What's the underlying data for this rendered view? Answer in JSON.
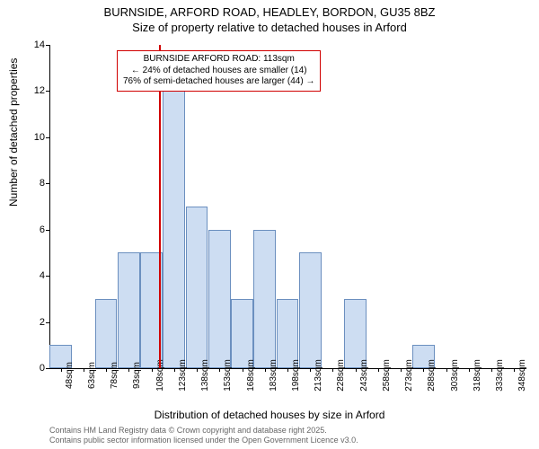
{
  "title": {
    "line1": "BURNSIDE, ARFORD ROAD, HEADLEY, BORDON, GU35 8BZ",
    "line2": "Size of property relative to detached houses in Arford"
  },
  "chart": {
    "type": "histogram",
    "ylabel": "Number of detached properties",
    "xlabel": "Distribution of detached houses by size in Arford",
    "ylim": [
      0,
      14
    ],
    "ytick_step": 2,
    "background_color": "#ffffff",
    "bar_fill": "#cdddf2",
    "bar_border": "#6b8fbf",
    "vline_color": "#d00000",
    "vline_value": 113,
    "annotation": {
      "line1": "BURNSIDE ARFORD ROAD: 113sqm",
      "line2": "← 24% of detached houses are smaller (14)",
      "line3": "76% of semi-detached houses are larger (44) →",
      "border_color": "#d00000"
    },
    "xticks": [
      "48sqm",
      "63sqm",
      "78sqm",
      "93sqm",
      "108sqm",
      "123sqm",
      "138sqm",
      "153sqm",
      "168sqm",
      "183sqm",
      "198sqm",
      "213sqm",
      "228sqm",
      "243sqm",
      "258sqm",
      "273sqm",
      "288sqm",
      "303sqm",
      "318sqm",
      "333sqm",
      "348sqm"
    ],
    "yticks": [
      0,
      2,
      4,
      6,
      8,
      10,
      12,
      14
    ],
    "bars": [
      {
        "x": 48,
        "count": 1
      },
      {
        "x": 63,
        "count": 0
      },
      {
        "x": 78,
        "count": 3
      },
      {
        "x": 93,
        "count": 5
      },
      {
        "x": 108,
        "count": 5
      },
      {
        "x": 123,
        "count": 12
      },
      {
        "x": 138,
        "count": 7
      },
      {
        "x": 153,
        "count": 6
      },
      {
        "x": 168,
        "count": 3
      },
      {
        "x": 183,
        "count": 6
      },
      {
        "x": 198,
        "count": 3
      },
      {
        "x": 213,
        "count": 5
      },
      {
        "x": 228,
        "count": 0
      },
      {
        "x": 243,
        "count": 3
      },
      {
        "x": 258,
        "count": 0
      },
      {
        "x": 273,
        "count": 0
      },
      {
        "x": 288,
        "count": 1
      },
      {
        "x": 303,
        "count": 0
      },
      {
        "x": 318,
        "count": 0
      },
      {
        "x": 333,
        "count": 0
      },
      {
        "x": 348,
        "count": 0
      }
    ],
    "x_start": 48,
    "x_step": 15
  },
  "footer": {
    "line1": "Contains HM Land Registry data © Crown copyright and database right 2025.",
    "line2": "Contains public sector information licensed under the Open Government Licence v3.0."
  }
}
